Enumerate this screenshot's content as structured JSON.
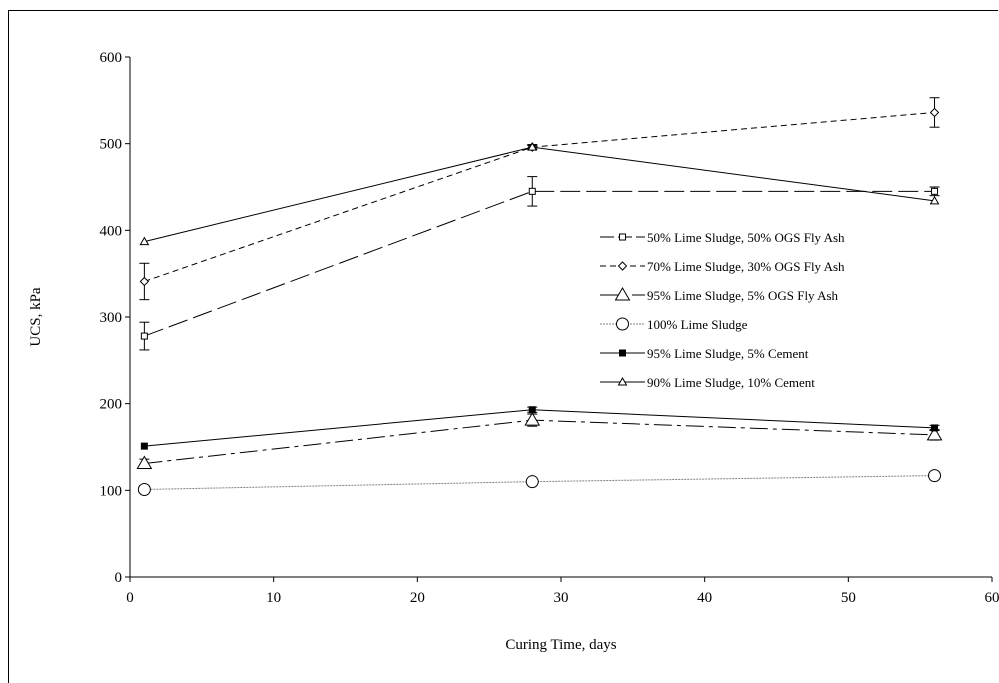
{
  "chart_data": {
    "type": "line",
    "title": "",
    "xlabel": "Curing Time, days",
    "ylabel": "UCS, kPa",
    "xlim": [
      0,
      60
    ],
    "ylim": [
      0,
      600
    ],
    "xticks": [
      0,
      10,
      20,
      30,
      40,
      50,
      60
    ],
    "yticks": [
      0,
      100,
      200,
      300,
      400,
      500,
      600
    ],
    "grid": false,
    "legend_position": "right-middle",
    "series": [
      {
        "name": "50% Lime Sludge, 50% OGS Fly Ash",
        "x": [
          1,
          28,
          56
        ],
        "y": [
          278,
          445,
          445
        ],
        "err": [
          16,
          17,
          5
        ],
        "marker": "square-open",
        "line": "long-dash",
        "color": "#000000"
      },
      {
        "name": "70% Lime Sludge, 30% OGS Fly Ash",
        "x": [
          1,
          28,
          56
        ],
        "y": [
          341,
          496,
          536
        ],
        "err": [
          21,
          2,
          17
        ],
        "marker": "diamond-open",
        "line": "dash",
        "color": "#000000"
      },
      {
        "name": "95% Lime Sludge, 5% OGS Fly Ash",
        "x": [
          1,
          28,
          56
        ],
        "y": [
          131,
          181,
          164
        ],
        "err": [
          5,
          7,
          6
        ],
        "marker": "triangle-open-large",
        "line": "dash-dot",
        "color": "#000000"
      },
      {
        "name": "100% Lime Sludge",
        "x": [
          1,
          28,
          56
        ],
        "y": [
          101,
          110,
          117
        ],
        "err": [
          0,
          0,
          0
        ],
        "marker": "circle-open",
        "line": "dotted-gray",
        "color": "#808080"
      },
      {
        "name": "95% Lime Sludge, 5% Cement",
        "x": [
          1,
          28,
          56
        ],
        "y": [
          151,
          193,
          172
        ],
        "err": [
          0,
          3,
          3
        ],
        "marker": "square-filled",
        "line": "solid",
        "color": "#000000"
      },
      {
        "name": "90% Lime Sludge, 10% Cement",
        "x": [
          1,
          28,
          56
        ],
        "y": [
          387,
          496,
          434
        ],
        "err": [
          0,
          3,
          0
        ],
        "marker": "triangle-open-small",
        "line": "solid",
        "color": "#000000"
      }
    ]
  }
}
